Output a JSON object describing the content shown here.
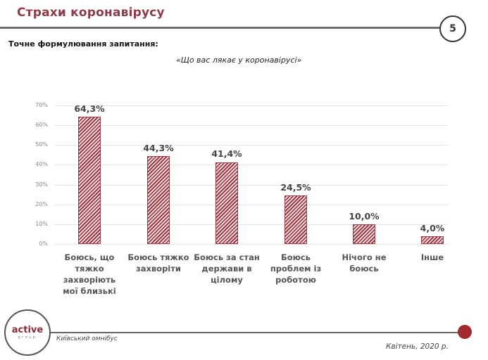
{
  "header": {
    "title": "Страхи коронавірусу",
    "page_number": "5"
  },
  "question": {
    "label": "Точне формулювання  запитання:",
    "text": "«Що вас лякає у коронавірусі»"
  },
  "colors": {
    "title": "#8e3a48",
    "bar_hatch_dark": "#8e2a36",
    "bar_hatch_light": "#f7d6d8",
    "footer_dot": "#a12a2f"
  },
  "chart_data": {
    "type": "bar",
    "title": "«Що вас лякає у коронавірусі»",
    "xlabel": "",
    "ylabel": "",
    "ylim": [
      0,
      70
    ],
    "yticks": [
      "0%",
      "10%",
      "20%",
      "30%",
      "40%",
      "50%",
      "60%",
      "70%"
    ],
    "grid": true,
    "legend": "none",
    "categories": [
      "Боюсь, що тяжко захворіють мої близькі",
      "Боюсь тяжко захворіти",
      "Боюсь за стан держави в цілому",
      "Боюсь проблем із роботою",
      "Нічого не боюсь",
      "Інше"
    ],
    "values": [
      64.3,
      44.3,
      41.4,
      24.5,
      10.0,
      4.0
    ],
    "value_labels": [
      "64,3%",
      "44,3%",
      "41,4%",
      "24,5%",
      "10,0%",
      "4,0%"
    ],
    "category_lines": [
      [
        "Боюсь, що",
        "тяжко",
        "захворіють",
        "мої близькі"
      ],
      [
        "Боюсь тяжко",
        "захворіти"
      ],
      [
        "Боюсь за стан",
        "держави в",
        "цілому"
      ],
      [
        "Боюсь",
        "проблем із",
        "роботою"
      ],
      [
        "Нічого не",
        "боюсь"
      ],
      [
        "Інше"
      ]
    ]
  },
  "footer": {
    "logo_main": "active",
    "logo_sub": "group",
    "left_text": "Київський омнібус",
    "right_text": "Квітень, 2020 р."
  }
}
